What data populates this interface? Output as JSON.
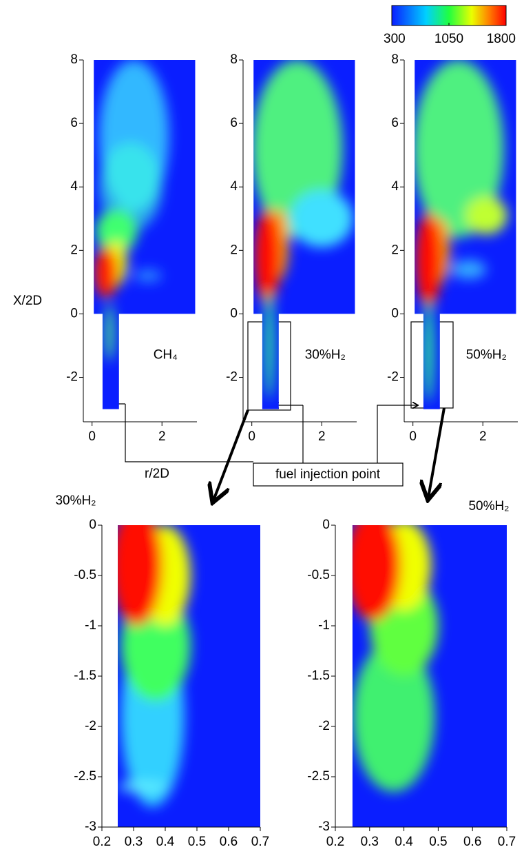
{
  "colorbar": {
    "range": [
      300,
      1800
    ],
    "ticks": [
      300,
      1050,
      1800
    ]
  },
  "callout": "fuel injection point",
  "chart_data": [
    {
      "type": "contour",
      "annotation": "CH₄",
      "x_label": "r/2D",
      "y_label": "X/2D",
      "xlim": [
        -0.25,
        3
      ],
      "ylim": [
        -3.4,
        8
      ],
      "xticks": [
        0,
        2
      ],
      "yticks": [
        -2,
        0,
        2,
        4,
        6,
        8
      ]
    },
    {
      "type": "contour",
      "annotation": "30%H₂",
      "xlim": [
        -0.25,
        3
      ],
      "ylim": [
        -3.4,
        8
      ],
      "xticks": [
        0,
        2
      ],
      "yticks": [
        -2,
        0,
        2,
        4,
        6,
        8
      ]
    },
    {
      "type": "contour",
      "annotation": "50%H₂",
      "xlim": [
        -0.25,
        3
      ],
      "ylim": [
        -3.4,
        8
      ],
      "xticks": [
        0,
        2
      ],
      "yticks": [
        -2,
        0,
        2,
        4,
        6,
        8
      ]
    },
    {
      "type": "contour",
      "title": "30%H₂",
      "xlim": [
        0.2,
        0.7
      ],
      "ylim": [
        -3,
        0
      ],
      "xticks": [
        0.2,
        0.3,
        0.4,
        0.5,
        0.6,
        0.7
      ],
      "yticks": [
        -3,
        -2.5,
        -2,
        -1.5,
        -1,
        -0.5,
        0
      ]
    },
    {
      "type": "contour",
      "title": "50%H₂",
      "xlim": [
        0.2,
        0.7
      ],
      "ylim": [
        -3,
        0
      ],
      "xticks": [
        0.2,
        0.3,
        0.4,
        0.5,
        0.6,
        0.7
      ],
      "yticks": [
        -3,
        -2.5,
        -2,
        -1.5,
        -1,
        -0.5,
        0
      ]
    }
  ]
}
